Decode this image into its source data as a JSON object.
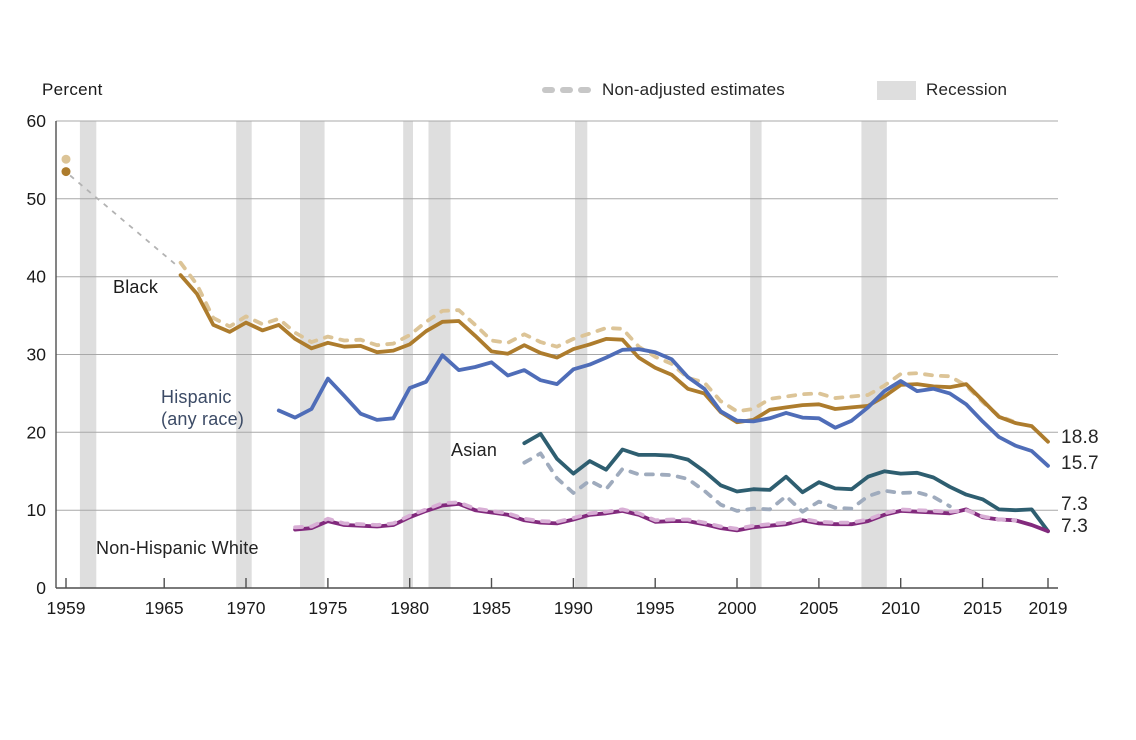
{
  "figure": {
    "y_axis_title": "Percent"
  },
  "legend": {
    "nonadjusted_label": "Non-adjusted estimates",
    "recession_label": "Recession"
  },
  "series_labels": {
    "black": "Black",
    "hispanic": "Hispanic\n(any race)",
    "asian": "Asian",
    "white": "Non-Hispanic White"
  },
  "end_labels": {
    "black": "18.8",
    "hispanic": "15.7",
    "asian": "7.3",
    "white": "7.3"
  },
  "colors": {
    "black_solid": "#ad7c2d",
    "black_dashed": "#dcc497",
    "hispanic": "#4f6db8",
    "asian_solid": "#2e5e70",
    "asian_dashed": "#9fabbd",
    "white_solid": "#822a7d",
    "white_dashed": "#d8aed5",
    "recession_band": "#dedede",
    "gridline": "#a8a8a8",
    "axis": "#4f4f4f",
    "connector": "#b3b3b3",
    "legend_dash": "#c7c7c7",
    "text": "#1a1a1a"
  },
  "chart_data": {
    "type": "line",
    "title": "",
    "ylabel": "Percent",
    "y_axis": {
      "ticks": [
        0,
        10,
        20,
        30,
        40,
        50,
        60
      ],
      "range": [
        0,
        60
      ],
      "grid": true
    },
    "x_axis": {
      "ticks": [
        1959,
        1965,
        1970,
        1975,
        1980,
        1985,
        1990,
        1995,
        2000,
        2005,
        2010,
        2015,
        2019
      ],
      "range": [
        1959,
        2019
      ]
    },
    "legend_position": "top",
    "recession_bands_years": [
      [
        1959.85,
        1960.85
      ],
      [
        1969.4,
        1970.35
      ],
      [
        1973.3,
        1974.8
      ],
      [
        1979.6,
        1980.2
      ],
      [
        1981.15,
        1982.5
      ],
      [
        1990.1,
        1990.85
      ],
      [
        2000.8,
        2001.5
      ],
      [
        2007.6,
        2009.15
      ]
    ],
    "points_1959": [
      {
        "series": "black_nonadjusted",
        "year": 1959,
        "value": 55.1
      },
      {
        "series": "black_adjusted",
        "year": 1959,
        "value": 53.5
      }
    ],
    "connector_1959_1966": {
      "from": [
        1959.25,
        53.0
      ],
      "to": [
        1965.85,
        41.3
      ]
    },
    "series": [
      {
        "id": "black_nonadjusted",
        "name": "Black (non-adjusted estimates)",
        "style": "dashed",
        "color": "#dcc497",
        "start": 1966,
        "values": [
          41.8,
          39.0,
          34.7,
          33.6,
          34.9,
          33.9,
          34.6,
          32.8,
          31.6,
          32.3,
          31.8,
          31.9,
          31.2,
          31.4,
          32.5,
          34.2,
          35.6,
          35.7,
          33.8,
          31.8,
          31.5,
          32.6,
          31.6,
          31.0,
          32.0,
          32.7,
          33.4,
          33.3,
          31.0,
          29.7,
          28.8,
          27.0,
          26.4,
          24.0,
          22.7,
          23.0,
          24.3,
          24.6,
          24.9,
          25.0,
          24.4,
          24.6,
          24.8,
          26.0,
          27.5,
          27.6,
          27.3,
          27.2,
          26.0,
          23.9,
          22.1,
          21.3
        ]
      },
      {
        "id": "black_adjusted",
        "name": "Black",
        "style": "solid",
        "color": "#ad7c2d",
        "start": 1966,
        "end_value": 18.8,
        "values": [
          40.2,
          37.8,
          33.8,
          32.9,
          34.1,
          33.1,
          33.8,
          32.0,
          30.8,
          31.5,
          31.0,
          31.1,
          30.3,
          30.5,
          31.3,
          33.0,
          34.2,
          34.3,
          32.4,
          30.4,
          30.1,
          31.2,
          30.2,
          29.6,
          30.7,
          31.3,
          32.0,
          31.9,
          29.6,
          28.3,
          27.4,
          25.6,
          25.0,
          22.6,
          21.3,
          21.6,
          22.9,
          23.2,
          23.5,
          23.6,
          23.0,
          23.2,
          23.4,
          24.6,
          26.1,
          26.2,
          25.9,
          25.8,
          26.2,
          24.1,
          22.0,
          21.2,
          20.8,
          18.8
        ]
      },
      {
        "id": "hispanic",
        "name": "Hispanic (any race)",
        "style": "solid",
        "color": "#4f6db8",
        "start": 1972,
        "end_value": 15.7,
        "values": [
          22.8,
          21.9,
          23.0,
          26.9,
          24.7,
          22.4,
          21.6,
          21.8,
          25.7,
          26.5,
          29.9,
          28.0,
          28.4,
          29.0,
          27.3,
          28.0,
          26.7,
          26.2,
          28.1,
          28.7,
          29.6,
          30.6,
          30.7,
          30.3,
          29.4,
          27.1,
          25.6,
          22.7,
          21.5,
          21.4,
          21.8,
          22.5,
          21.9,
          21.8,
          20.6,
          21.5,
          23.2,
          25.3,
          26.6,
          25.3,
          25.6,
          25.0,
          23.6,
          21.4,
          19.4,
          18.3,
          17.6,
          15.7
        ]
      },
      {
        "id": "asian_nonadjusted",
        "name": "Asian (non-adjusted estimates)",
        "style": "dashed",
        "color": "#9fabbd",
        "start": 1987,
        "values": [
          16.1,
          17.3,
          14.1,
          12.2,
          13.8,
          12.7,
          15.3,
          14.6,
          14.6,
          14.5,
          14.0,
          12.5,
          10.7,
          9.9,
          10.2,
          10.1,
          11.8,
          9.8,
          11.1,
          10.3,
          10.2,
          11.8,
          12.5,
          12.2,
          12.3,
          11.7,
          10.5
        ]
      },
      {
        "id": "asian_adjusted",
        "name": "Asian",
        "style": "solid",
        "color": "#2e5e70",
        "start": 1987,
        "end_value": 7.3,
        "values": [
          18.6,
          19.8,
          16.6,
          14.7,
          16.3,
          15.2,
          17.8,
          17.1,
          17.1,
          17.0,
          16.5,
          15.0,
          13.2,
          12.4,
          12.7,
          12.6,
          14.3,
          12.3,
          13.6,
          12.8,
          12.7,
          14.3,
          15.0,
          14.7,
          14.8,
          14.2,
          13.0,
          12.0,
          11.4,
          10.1,
          10.0,
          10.1,
          7.3
        ]
      },
      {
        "id": "white_adjusted",
        "name": "Non-Hispanic White",
        "style": "solid",
        "color": "#822a7d",
        "start": 1973,
        "end_value": 7.3,
        "values": [
          7.5,
          7.7,
          8.6,
          8.1,
          8.0,
          7.9,
          8.1,
          9.1,
          9.9,
          10.6,
          10.8,
          10.0,
          9.7,
          9.4,
          8.7,
          8.4,
          8.3,
          8.8,
          9.4,
          9.6,
          9.9,
          9.4,
          8.5,
          8.6,
          8.6,
          8.2,
          7.7,
          7.4,
          7.8,
          8.0,
          8.2,
          8.7,
          8.3,
          8.2,
          8.2,
          8.6,
          9.4,
          9.9,
          9.8,
          9.7,
          9.6,
          10.1,
          9.1,
          8.8,
          8.7,
          8.1,
          7.3
        ]
      },
      {
        "id": "white_nonadjusted",
        "name": "Non-Hispanic White (non-adjusted estimates)",
        "style": "dashed",
        "color": "#d8aed5",
        "start": 1973,
        "values": [
          7.8,
          7.9,
          8.9,
          8.3,
          8.2,
          8.1,
          8.3,
          9.3,
          10.1,
          10.9,
          11.0,
          10.2,
          9.9,
          9.6,
          8.9,
          8.6,
          8.5,
          9.0,
          9.6,
          9.8,
          10.1,
          9.6,
          8.7,
          8.8,
          8.8,
          8.4,
          7.9,
          7.6,
          8.0,
          8.2,
          8.4,
          8.9,
          8.5,
          8.4,
          8.4,
          8.8,
          9.6,
          10.1,
          10.0,
          9.9,
          9.8,
          10.0,
          9.2,
          8.8,
          8.7
        ]
      }
    ]
  }
}
